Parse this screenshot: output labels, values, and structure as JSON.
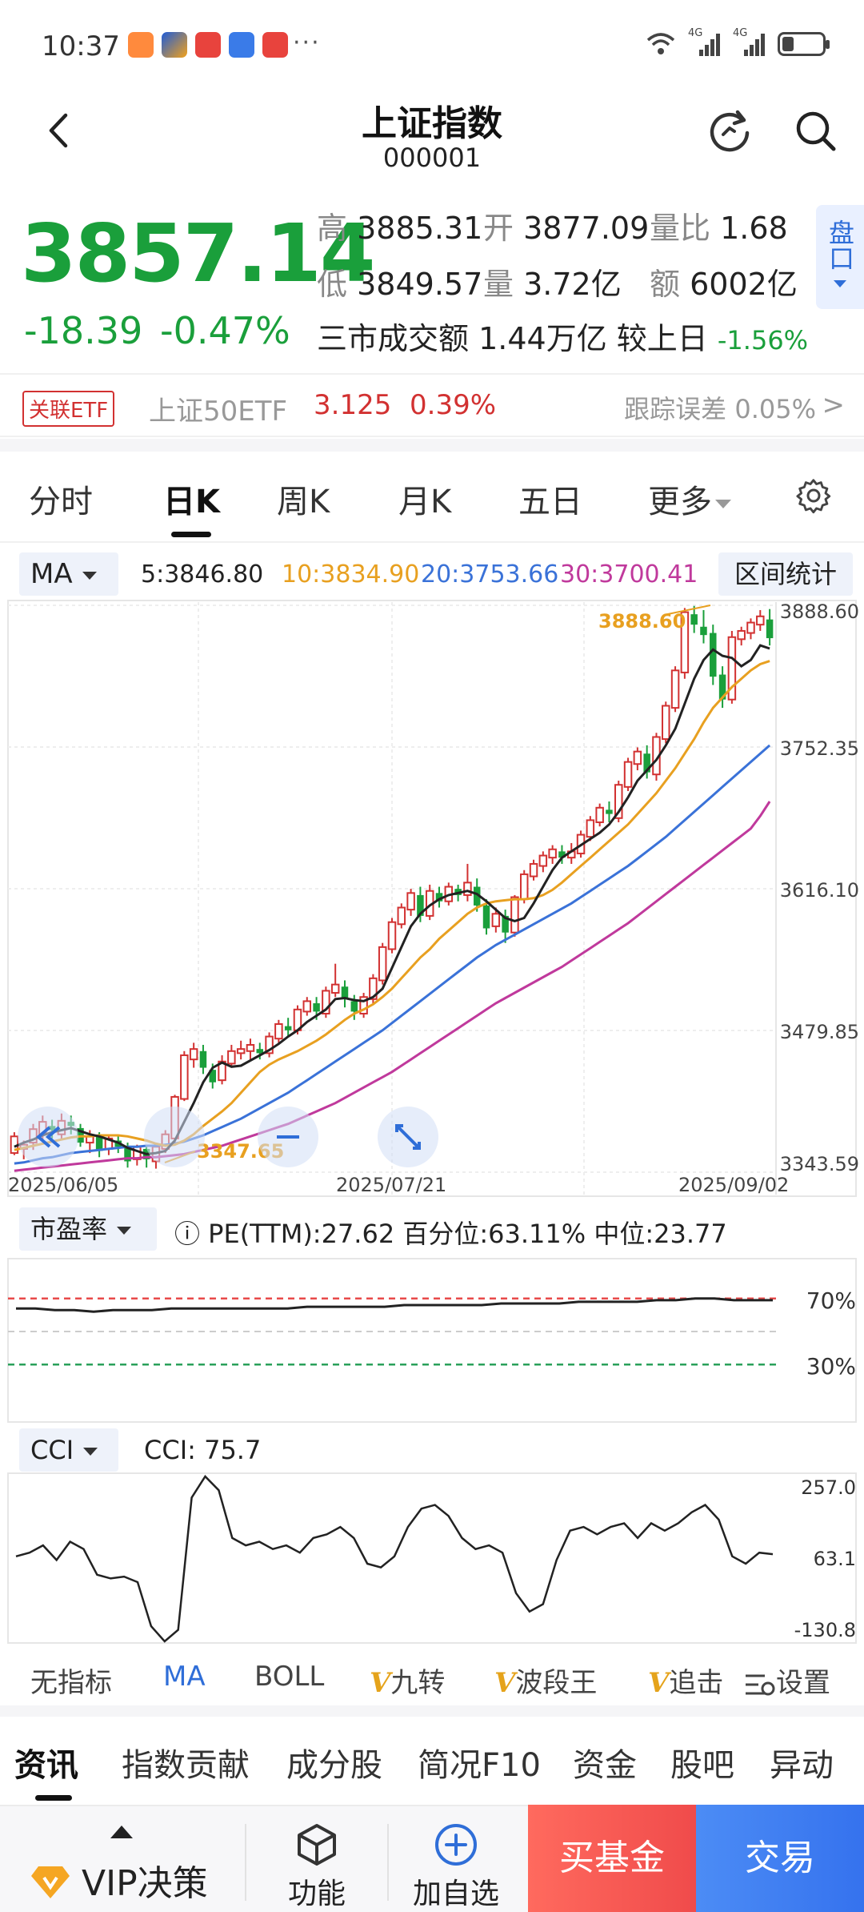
{
  "status_bar": {
    "time": "10:37",
    "more": "···",
    "net1": "4G",
    "net2": "4G",
    "icons": [
      "app-icon-orange",
      "app-icon-color",
      "app-icon-red",
      "app-icon-blue",
      "app-icon-red2"
    ]
  },
  "header": {
    "title": "上证指数",
    "code": "000001"
  },
  "quote": {
    "price": "3857.14",
    "change": "-18.39",
    "change_pct": "-0.47%",
    "high_label": "高",
    "high": "3885.31",
    "open_label": "开",
    "open": "3877.09",
    "ratio_label": "量比",
    "ratio": "1.68",
    "low_label": "低",
    "low": "3849.57",
    "vol_label": "量",
    "vol": "3.72亿",
    "amt_label": "额",
    "amt": "6002亿",
    "market_text": "三市成交额 1.44万亿 较上日",
    "market_change": "-1.56%",
    "pankou": "盘口"
  },
  "etf": {
    "badge": "关联ETF",
    "name": "上证50ETF",
    "price": "3.125",
    "pct": "0.39%",
    "track": "跟踪误差 0.05%",
    "arrow": ">"
  },
  "period_tabs": [
    "分时",
    "日K",
    "周K",
    "月K",
    "五日",
    "更多"
  ],
  "active_period": "日K",
  "ma_legend": {
    "selector": "MA",
    "ma5": "5:3846.80",
    "ma10": "10:3834.90",
    "ma20": "20:3753.66",
    "ma30": "30:3700.41",
    "range_button": "区间统计"
  },
  "colors": {
    "up": "#d23131",
    "down": "#1a9f3b",
    "ma5": "#222222",
    "ma10": "#e8a020",
    "ma20": "#3a72d8",
    "ma30": "#c0399c"
  },
  "chart_data": {
    "type": "candlestick",
    "y_ticks": [
      "3888.60",
      "3752.35",
      "3616.10",
      "3479.85",
      "3343.59"
    ],
    "ylim": [
      3343.59,
      3888.6
    ],
    "x_labels": [
      "2025/06/05",
      "2025/07/21",
      "2025/09/02"
    ],
    "high_label": "3888.60",
    "low_label": "3347.65",
    "candles": [
      [
        3362,
        3378,
        3360,
        3382
      ],
      [
        3366,
        3370,
        3356,
        3374
      ],
      [
        3372,
        3385,
        3365,
        3390
      ],
      [
        3380,
        3392,
        3374,
        3398
      ],
      [
        3388,
        3384,
        3376,
        3394
      ],
      [
        3380,
        3393,
        3374,
        3400
      ],
      [
        3392,
        3388,
        3380,
        3398
      ],
      [
        3386,
        3372,
        3368,
        3390
      ],
      [
        3372,
        3378,
        3362,
        3384
      ],
      [
        3378,
        3364,
        3358,
        3382
      ],
      [
        3366,
        3376,
        3360,
        3380
      ],
      [
        3374,
        3368,
        3362,
        3378
      ],
      [
        3368,
        3354,
        3348,
        3372
      ],
      [
        3356,
        3368,
        3350,
        3370
      ],
      [
        3366,
        3356,
        3348,
        3370
      ],
      [
        3354,
        3368,
        3347,
        3372
      ],
      [
        3366,
        3380,
        3362,
        3384
      ],
      [
        3376,
        3416,
        3372,
        3418
      ],
      [
        3414,
        3456,
        3412,
        3460
      ],
      [
        3452,
        3462,
        3444,
        3468
      ],
      [
        3460,
        3444,
        3438,
        3466
      ],
      [
        3442,
        3430,
        3424,
        3448
      ],
      [
        3432,
        3450,
        3428,
        3456
      ],
      [
        3448,
        3460,
        3444,
        3466
      ],
      [
        3458,
        3462,
        3452,
        3470
      ],
      [
        3460,
        3466,
        3452,
        3472
      ],
      [
        3462,
        3458,
        3452,
        3468
      ],
      [
        3458,
        3474,
        3454,
        3478
      ],
      [
        3472,
        3486,
        3468,
        3490
      ],
      [
        3484,
        3480,
        3474,
        3492
      ],
      [
        3480,
        3500,
        3476,
        3504
      ],
      [
        3498,
        3508,
        3494,
        3512
      ],
      [
        3506,
        3498,
        3490,
        3512
      ],
      [
        3496,
        3518,
        3492,
        3522
      ],
      [
        3516,
        3524,
        3512,
        3544
      ],
      [
        3522,
        3510,
        3502,
        3528
      ],
      [
        3508,
        3498,
        3490,
        3514
      ],
      [
        3496,
        3512,
        3492,
        3516
      ],
      [
        3510,
        3530,
        3506,
        3534
      ],
      [
        3528,
        3560,
        3524,
        3564
      ],
      [
        3558,
        3584,
        3554,
        3588
      ],
      [
        3582,
        3598,
        3578,
        3602
      ],
      [
        3596,
        3612,
        3590,
        3616
      ],
      [
        3610,
        3590,
        3584,
        3618
      ],
      [
        3590,
        3614,
        3586,
        3620
      ],
      [
        3612,
        3604,
        3598,
        3618
      ],
      [
        3604,
        3618,
        3600,
        3622
      ],
      [
        3616,
        3610,
        3604,
        3620
      ],
      [
        3610,
        3622,
        3604,
        3640
      ],
      [
        3618,
        3600,
        3594,
        3626
      ],
      [
        3600,
        3578,
        3572,
        3606
      ],
      [
        3580,
        3592,
        3574,
        3598
      ],
      [
        3590,
        3574,
        3564,
        3596
      ],
      [
        3574,
        3608,
        3570,
        3610
      ],
      [
        3606,
        3630,
        3602,
        3634
      ],
      [
        3628,
        3640,
        3624,
        3644
      ],
      [
        3638,
        3648,
        3632,
        3652
      ],
      [
        3646,
        3654,
        3640,
        3658
      ],
      [
        3652,
        3646,
        3640,
        3658
      ],
      [
        3646,
        3652,
        3640,
        3660
      ],
      [
        3650,
        3668,
        3646,
        3672
      ],
      [
        3666,
        3682,
        3662,
        3686
      ],
      [
        3680,
        3694,
        3676,
        3698
      ],
      [
        3692,
        3688,
        3680,
        3700
      ],
      [
        3684,
        3716,
        3680,
        3720
      ],
      [
        3714,
        3738,
        3710,
        3742
      ],
      [
        3736,
        3748,
        3730,
        3752
      ],
      [
        3746,
        3728,
        3722,
        3754
      ],
      [
        3726,
        3762,
        3720,
        3766
      ],
      [
        3760,
        3792,
        3756,
        3796
      ],
      [
        3790,
        3826,
        3786,
        3830
      ],
      [
        3824,
        3882,
        3818,
        3886
      ],
      [
        3880,
        3870,
        3862,
        3888
      ],
      [
        3868,
        3860,
        3852,
        3884
      ],
      [
        3862,
        3820,
        3812,
        3870
      ],
      [
        3822,
        3798,
        3790,
        3830
      ],
      [
        3798,
        3858,
        3794,
        3864
      ],
      [
        3856,
        3864,
        3850,
        3868
      ],
      [
        3862,
        3872,
        3856,
        3876
      ],
      [
        3870,
        3878,
        3864,
        3884
      ],
      [
        3875,
        3857,
        3850,
        3885
      ]
    ],
    "ma5": [
      3368,
      3372,
      3375,
      3379,
      3382,
      3384,
      3386,
      3383,
      3380,
      3378,
      3375,
      3372,
      3367,
      3364,
      3361,
      3362,
      3364,
      3374,
      3392,
      3410,
      3430,
      3444,
      3449,
      3445,
      3446,
      3451,
      3456,
      3461,
      3467,
      3474,
      3480,
      3488,
      3494,
      3500,
      3510,
      3511,
      3509,
      3508,
      3512,
      3520,
      3540,
      3560,
      3580,
      3592,
      3600,
      3606,
      3610,
      3612,
      3614,
      3611,
      3604,
      3596,
      3588,
      3585,
      3588,
      3602,
      3618,
      3634,
      3646,
      3652,
      3658,
      3664,
      3670,
      3678,
      3690,
      3704,
      3720,
      3730,
      3740,
      3754,
      3770,
      3794,
      3818,
      3836,
      3846,
      3840,
      3838,
      3830,
      3836,
      3850,
      3847
    ],
    "ma10": [
      3365,
      3367,
      3369,
      3371,
      3373,
      3375,
      3377,
      3378,
      3378,
      3379,
      3379,
      3379,
      3378,
      3376,
      3374,
      3371,
      3369,
      3370,
      3374,
      3380,
      3388,
      3395,
      3402,
      3410,
      3420,
      3430,
      3440,
      3447,
      3452,
      3456,
      3460,
      3465,
      3470,
      3476,
      3483,
      3490,
      3496,
      3500,
      3505,
      3512,
      3520,
      3530,
      3540,
      3550,
      3558,
      3568,
      3576,
      3584,
      3592,
      3598,
      3602,
      3604,
      3605,
      3606,
      3606,
      3607,
      3610,
      3615,
      3622,
      3630,
      3638,
      3646,
      3654,
      3662,
      3670,
      3678,
      3688,
      3698,
      3708,
      3720,
      3732,
      3746,
      3760,
      3776,
      3790,
      3800,
      3810,
      3818,
      3826,
      3832,
      3835
    ],
    "ma20": [
      3352,
      3353,
      3355,
      3357,
      3358,
      3360,
      3362,
      3363,
      3364,
      3365,
      3366,
      3367,
      3368,
      3368,
      3369,
      3369,
      3370,
      3371,
      3373,
      3376,
      3379,
      3383,
      3387,
      3391,
      3395,
      3400,
      3405,
      3410,
      3415,
      3420,
      3426,
      3432,
      3438,
      3444,
      3450,
      3456,
      3462,
      3468,
      3474,
      3480,
      3487,
      3494,
      3501,
      3508,
      3515,
      3522,
      3529,
      3536,
      3543,
      3550,
      3556,
      3562,
      3567,
      3572,
      3577,
      3582,
      3587,
      3592,
      3597,
      3602,
      3608,
      3614,
      3620,
      3626,
      3632,
      3638,
      3645,
      3652,
      3659,
      3666,
      3674,
      3682,
      3690,
      3698,
      3706,
      3714,
      3722,
      3730,
      3738,
      3746,
      3754
    ],
    "ma30": [
      3345,
      3346,
      3347,
      3348,
      3349,
      3350,
      3351,
      3352,
      3353,
      3354,
      3355,
      3356,
      3357,
      3357,
      3358,
      3358,
      3359,
      3360,
      3361,
      3363,
      3365,
      3367,
      3369,
      3372,
      3375,
      3378,
      3381,
      3384,
      3387,
      3390,
      3394,
      3398,
      3402,
      3406,
      3410,
      3415,
      3420,
      3425,
      3430,
      3435,
      3440,
      3446,
      3452,
      3458,
      3464,
      3470,
      3476,
      3482,
      3488,
      3494,
      3500,
      3506,
      3511,
      3516,
      3521,
      3526,
      3531,
      3536,
      3541,
      3547,
      3553,
      3559,
      3565,
      3571,
      3577,
      3583,
      3590,
      3597,
      3604,
      3611,
      3618,
      3625,
      3632,
      3639,
      3646,
      3653,
      3660,
      3667,
      3674,
      3686,
      3700
    ]
  },
  "pe": {
    "selector": "市盈率",
    "info": "ⓘ PE(TTM):27.62   百分位:63.11%   中位:23.77",
    "label_high": "70%",
    "label_low": "30%",
    "percentile_line": [
      0.64,
      0.64,
      0.63,
      0.63,
      0.62,
      0.63,
      0.63,
      0.63,
      0.64,
      0.64,
      0.64,
      0.64,
      0.64,
      0.64,
      0.64,
      0.65,
      0.65,
      0.65,
      0.65,
      0.65,
      0.66,
      0.66,
      0.66,
      0.66,
      0.66,
      0.67,
      0.67,
      0.67,
      0.67,
      0.68,
      0.68,
      0.68,
      0.68,
      0.69,
      0.69,
      0.7,
      0.7,
      0.69,
      0.69,
      0.69
    ]
  },
  "cci": {
    "selector": "CCI",
    "info": "CCI:  75.7",
    "ticks": [
      "257.0",
      "63.1",
      "-130.8"
    ],
    "values": [
      70,
      80,
      100,
      60,
      110,
      90,
      20,
      10,
      15,
      0,
      -120,
      -200,
      -130,
      230,
      300,
      250,
      120,
      100,
      110,
      90,
      100,
      80,
      120,
      130,
      150,
      120,
      50,
      40,
      70,
      150,
      200,
      210,
      180,
      120,
      90,
      100,
      80,
      -30,
      -80,
      -60,
      60,
      140,
      150,
      130,
      150,
      160,
      120,
      160,
      140,
      160,
      190,
      210,
      170,
      70,
      50,
      80,
      76
    ]
  },
  "indicator_tabs": {
    "none": "无指标",
    "ma": "MA",
    "boll": "BOLL",
    "v_mark": "V",
    "jiuzhuan": "九转",
    "boduanwang": "波段王",
    "zhuiji": "追击",
    "settings": "设置"
  },
  "news_tabs": [
    "资讯",
    "指数贡献",
    "成分股",
    "简况F10",
    "资金",
    "股吧",
    "异动"
  ],
  "bottom_bar": {
    "vip": "VIP决策",
    "function": "功能",
    "add_watch": "加自选",
    "buy_fund": "买基金",
    "trade": "交易"
  }
}
